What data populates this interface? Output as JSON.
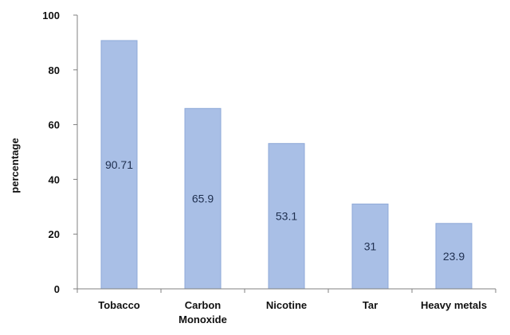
{
  "chart_data": {
    "type": "bar",
    "title": "",
    "xlabel": "",
    "ylabel": "percentage",
    "categories": [
      [
        "Tobacco"
      ],
      [
        "Carbon",
        "Monoxide"
      ],
      [
        "Nicotine"
      ],
      [
        "Tar"
      ],
      [
        "Heavy metals"
      ]
    ],
    "values": [
      90.71,
      65.9,
      53.1,
      31,
      23.9
    ],
    "data_labels": [
      "90.71",
      "65.9",
      "53.1",
      "31",
      "23.9"
    ],
    "ylim": [
      0,
      100
    ],
    "yticks": [
      0,
      20,
      40,
      60,
      80,
      100
    ],
    "ytick_labels": [
      "0",
      "20",
      "40",
      "60",
      "80",
      "100"
    ],
    "grid": false,
    "legend": "none",
    "colors": {
      "bar_fill": "#a9bfe6",
      "bar_stroke": "#8ea9d8",
      "axis": "#808080",
      "data_label": "#1f2f4f",
      "text": "#111111"
    }
  }
}
